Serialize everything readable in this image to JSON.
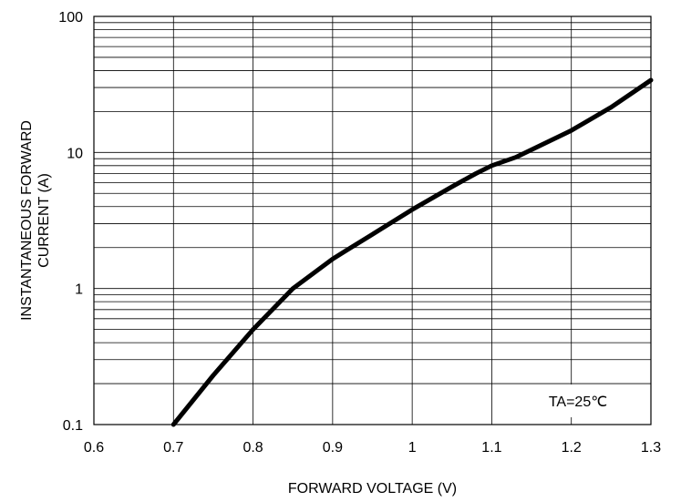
{
  "chart_data": {
    "type": "line",
    "title": "",
    "xlabel": "FORWARD VOLTAGE (V)",
    "ylabel_lines": [
      "INSTANTANEOUS FORWARD",
      "CURRENT (A)"
    ],
    "xlim": [
      0.6,
      1.3
    ],
    "ylim": [
      0.1,
      100
    ],
    "yscale": "log",
    "grid": true,
    "x_ticks": [
      0.6,
      0.7,
      0.8,
      0.9,
      1.0,
      1.1,
      1.2,
      1.3
    ],
    "x_tick_labels": [
      "0.6",
      "0.7",
      "0.8",
      "0.9",
      "1",
      "1.1",
      "1.2",
      "1.3"
    ],
    "y_ticks": [
      0.1,
      1,
      10,
      100
    ],
    "y_tick_labels": [
      "0.1",
      "1",
      "10",
      "100"
    ],
    "series": [
      {
        "x": [
          0.7,
          0.75,
          0.8,
          0.85,
          0.9,
          0.95,
          1.0,
          1.05,
          1.08,
          1.1,
          1.13,
          1.2,
          1.25,
          1.3
        ],
        "y": [
          0.1,
          0.23,
          0.5,
          1.0,
          1.65,
          2.5,
          3.8,
          5.6,
          7.0,
          8.0,
          9.2,
          14.5,
          21.5,
          34.0
        ]
      }
    ],
    "line_color": "#000000",
    "annotation": {
      "text": "TA=25℃",
      "position": "bottom-right"
    }
  }
}
